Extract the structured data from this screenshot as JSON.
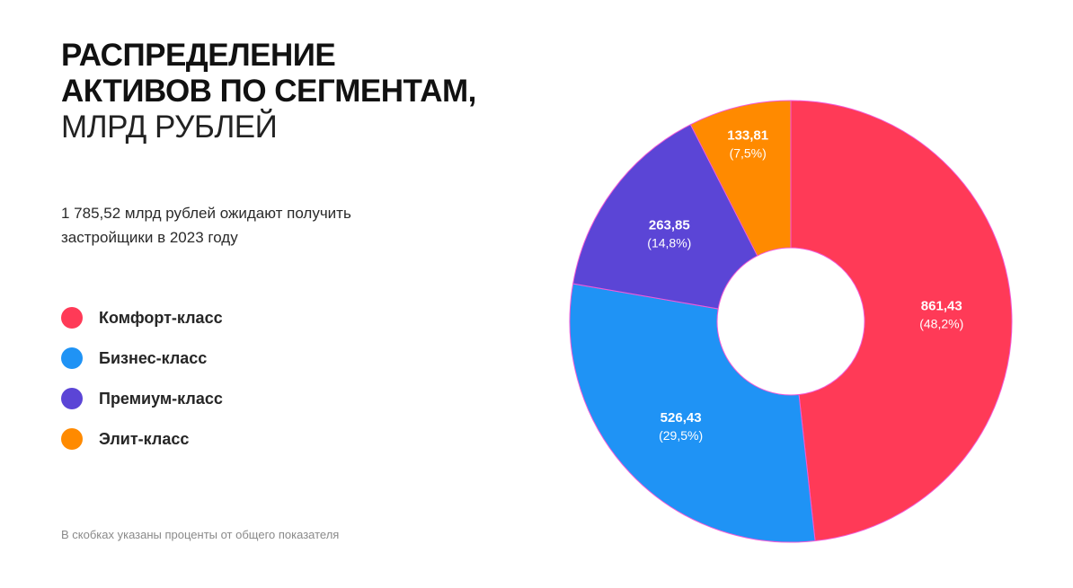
{
  "header": {
    "title_lines": [
      "РАСПРЕДЕЛЕНИЕ",
      "АКТИВОВ ПО СЕГМЕНТАМ,"
    ],
    "unit_line": "МЛРД РУБЛЕЙ"
  },
  "subtitle_lines": [
    "1 785,52 млрд рублей ожидают получить",
    "застройщики в 2023 году"
  ],
  "footnote": "В скобках указаны проценты от общего показателя",
  "chart_data": {
    "type": "pie",
    "donut": true,
    "title": "РАСПРЕДЕЛЕНИЕ АКТИВОВ ПО СЕГМЕНТАМ, МЛРД РУБЛЕЙ",
    "total": 1785.52,
    "legend_position": "left",
    "slices": [
      {
        "name": "Комфорт-класс",
        "value": 861.43,
        "value_label": "861,43",
        "percent": 48.2,
        "percent_label": "(48,2%)",
        "color": "#ff3a57"
      },
      {
        "name": "Бизнес-класс",
        "value": 526.43,
        "value_label": "526,43",
        "percent": 29.5,
        "percent_label": "(29,5%)",
        "color": "#1f93f5"
      },
      {
        "name": "Премиум-класс",
        "value": 263.85,
        "value_label": "263,85",
        "percent": 14.8,
        "percent_label": "(14,8%)",
        "color": "#5b45d6"
      },
      {
        "name": "Элит-класс",
        "value": 133.81,
        "value_label": "133,81",
        "percent": 7.5,
        "percent_label": "(7,5%)",
        "color": "#ff8a00"
      }
    ]
  }
}
